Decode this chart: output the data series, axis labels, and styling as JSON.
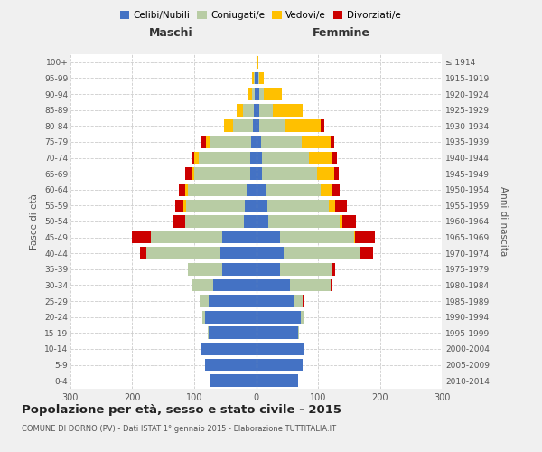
{
  "age_groups": [
    "0-4",
    "5-9",
    "10-14",
    "15-19",
    "20-24",
    "25-29",
    "30-34",
    "35-39",
    "40-44",
    "45-49",
    "50-54",
    "55-59",
    "60-64",
    "65-69",
    "70-74",
    "75-79",
    "80-84",
    "85-89",
    "90-94",
    "95-99",
    "100+"
  ],
  "birth_years": [
    "2010-2014",
    "2005-2009",
    "2000-2004",
    "1995-1999",
    "1990-1994",
    "1985-1989",
    "1980-1984",
    "1975-1979",
    "1970-1974",
    "1965-1969",
    "1960-1964",
    "1955-1959",
    "1950-1954",
    "1945-1949",
    "1940-1944",
    "1935-1939",
    "1930-1934",
    "1925-1929",
    "1920-1924",
    "1915-1919",
    "≤ 1914"
  ],
  "male": {
    "celibe": [
      75,
      82,
      88,
      76,
      82,
      76,
      70,
      55,
      58,
      55,
      20,
      18,
      15,
      10,
      10,
      8,
      5,
      3,
      2,
      2,
      0
    ],
    "coniugato": [
      0,
      0,
      0,
      2,
      5,
      15,
      35,
      55,
      120,
      115,
      95,
      95,
      95,
      90,
      82,
      65,
      32,
      18,
      5,
      2,
      0
    ],
    "vedovo": [
      0,
      0,
      0,
      0,
      0,
      0,
      0,
      0,
      0,
      0,
      0,
      5,
      5,
      5,
      8,
      8,
      15,
      10,
      5,
      2,
      0
    ],
    "divorziato": [
      0,
      0,
      0,
      0,
      0,
      0,
      0,
      0,
      10,
      30,
      18,
      12,
      10,
      10,
      5,
      8,
      0,
      0,
      0,
      0,
      0
    ]
  },
  "female": {
    "nubile": [
      68,
      75,
      78,
      68,
      72,
      60,
      55,
      38,
      45,
      38,
      20,
      18,
      15,
      10,
      10,
      8,
      5,
      5,
      5,
      3,
      2
    ],
    "coniugata": [
      0,
      0,
      0,
      2,
      5,
      15,
      65,
      85,
      122,
      120,
      115,
      100,
      90,
      88,
      75,
      65,
      42,
      22,
      8,
      2,
      0
    ],
    "vedova": [
      0,
      0,
      0,
      0,
      0,
      0,
      0,
      0,
      0,
      2,
      5,
      10,
      18,
      28,
      38,
      48,
      58,
      48,
      28,
      8,
      2
    ],
    "divorziata": [
      0,
      0,
      0,
      0,
      0,
      2,
      2,
      5,
      22,
      32,
      22,
      18,
      12,
      8,
      8,
      5,
      5,
      0,
      0,
      0,
      0
    ]
  },
  "colors": {
    "celibe": "#4472c4",
    "coniugato": "#b8cca4",
    "vedovo": "#ffc000",
    "divorziato": "#cc0000"
  },
  "title": "Popolazione per età, sesso e stato civile - 2015",
  "subtitle": "COMUNE DI DORNO (PV) - Dati ISTAT 1° gennaio 2015 - Elaborazione TUTTITALIA.IT",
  "label_maschi": "Maschi",
  "label_femmine": "Femmine",
  "ylabel_left": "Fasce di età",
  "ylabel_right": "Anni di nascita",
  "xlim": 300,
  "background_color": "#f0f0f0",
  "plot_bg_color": "#ffffff"
}
